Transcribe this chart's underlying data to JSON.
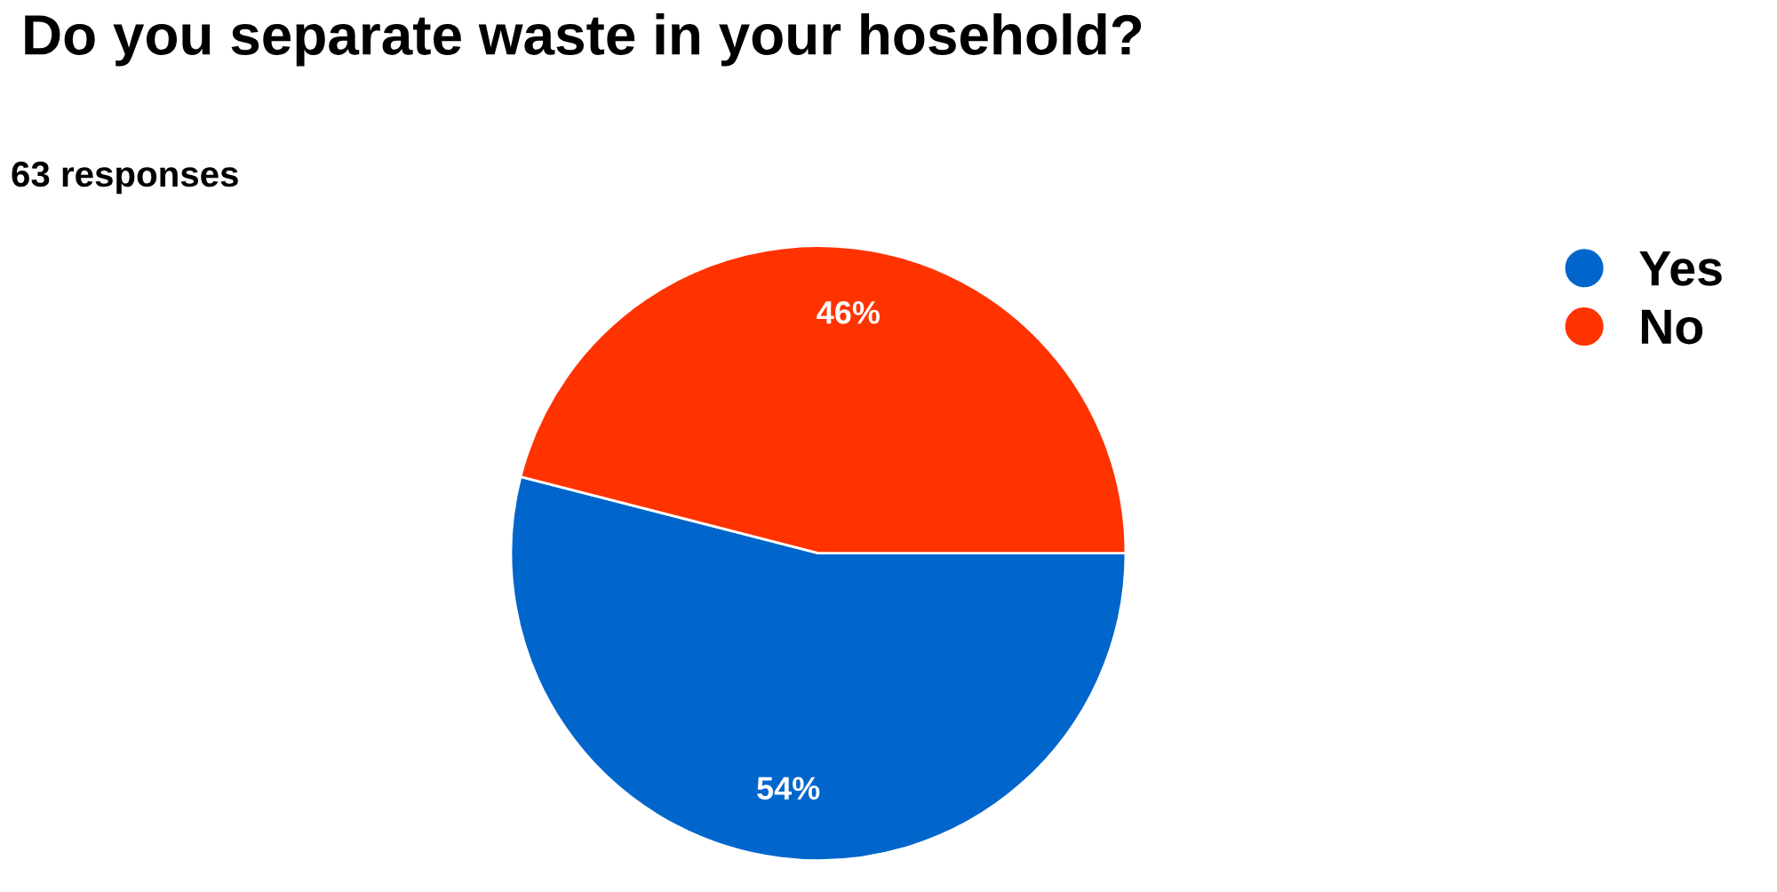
{
  "chart_data": {
    "type": "pie",
    "title": "Do you separate waste in your hosehold?",
    "subtitle": "63 responses",
    "categories": [
      "Yes",
      "No"
    ],
    "values": [
      54,
      46
    ],
    "value_labels": [
      "54%",
      "46%"
    ],
    "colors": [
      "#0066cc",
      "#ff3300"
    ],
    "legend": "top right"
  }
}
